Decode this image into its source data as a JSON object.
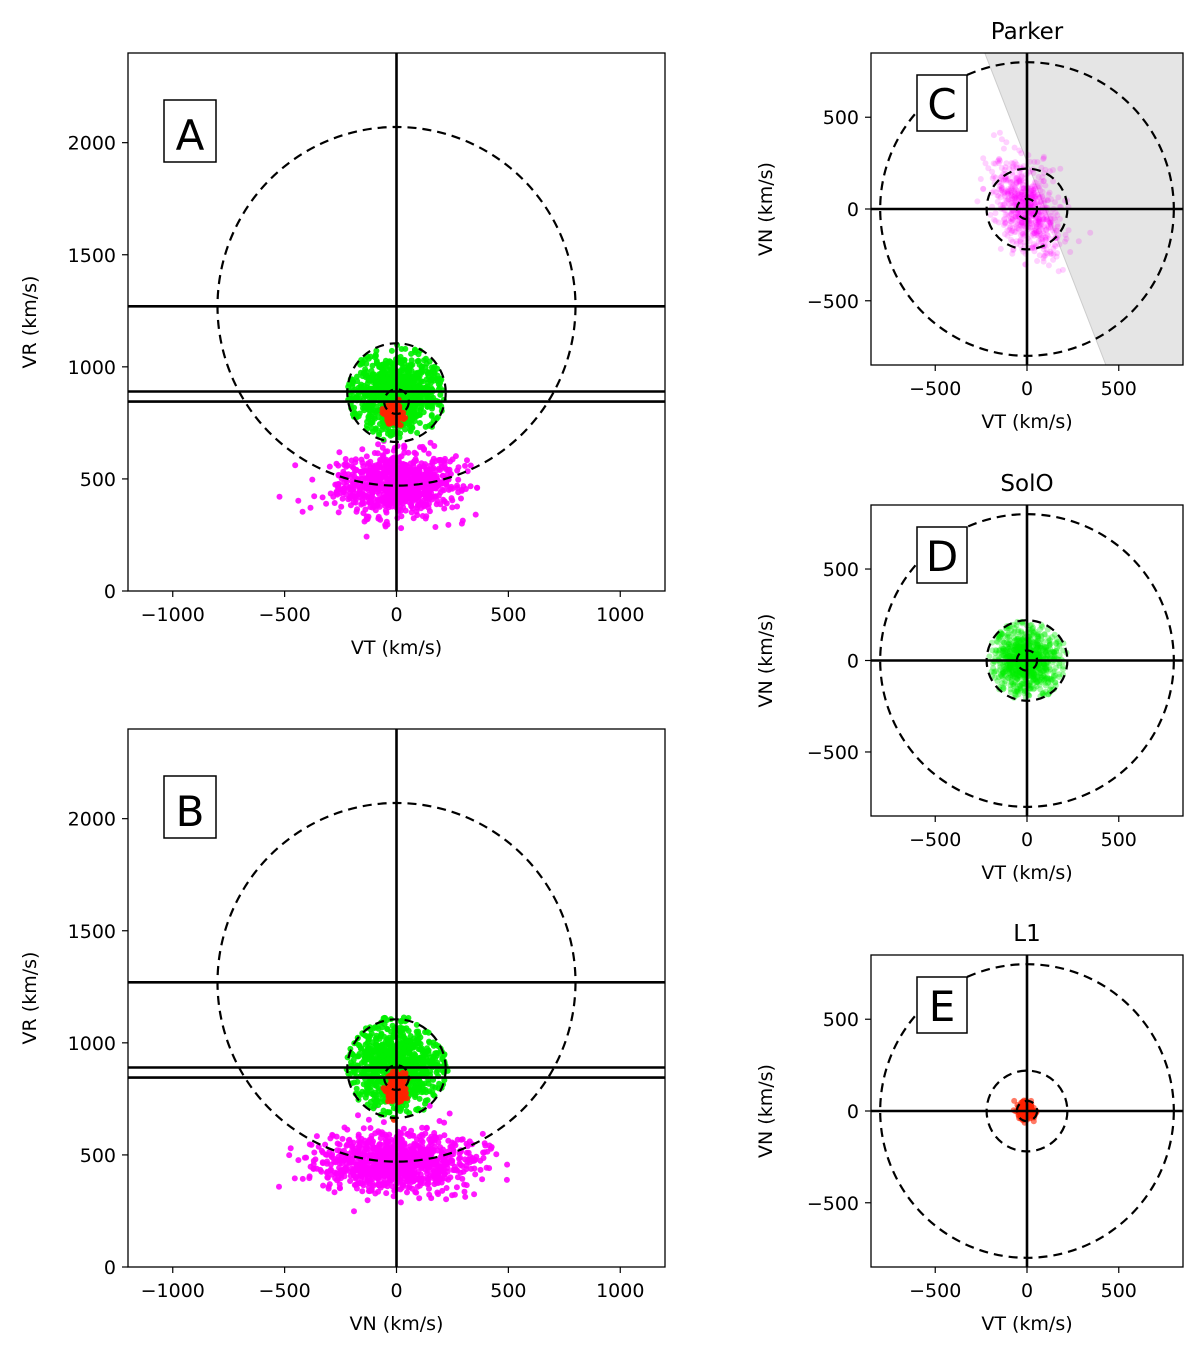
{
  "chart_data": [
    {
      "type": "scatter",
      "panel": "A",
      "title": "",
      "xlabel": "VT (km/s)",
      "ylabel": "VR (km/s)",
      "xlim": [
        -1200,
        1200
      ],
      "ylim": [
        0,
        2400
      ],
      "xticks": [
        -1000,
        -500,
        0,
        500,
        1000
      ],
      "yticks": [
        0,
        500,
        1000,
        1500,
        2000
      ],
      "hlines": [
        1270,
        890,
        845
      ],
      "vlines": [
        0
      ],
      "circles": [
        {
          "cx": 0,
          "cy": 1270,
          "r": 800
        },
        {
          "cx": 0,
          "cy": 885,
          "r": 220
        },
        {
          "cx": 0,
          "cy": 845,
          "r": 55
        }
      ],
      "series": [
        {
          "color": "#ff00ff",
          "cx": 0,
          "cy": 480,
          "sx": 130,
          "sy": 70,
          "clip_above": 680,
          "n": 900
        },
        {
          "color": "#00ee00",
          "cx": 0,
          "cy": 880,
          "sx": 95,
          "sy": 80,
          "rmax": 220,
          "n": 900
        },
        {
          "color": "#ff2200",
          "cx": -15,
          "cy": 790,
          "sx": 18,
          "sy": 25,
          "n": 160
        }
      ]
    },
    {
      "type": "scatter",
      "panel": "B",
      "title": "",
      "xlabel": "VN (km/s)",
      "ylabel": "VR (km/s)",
      "xlim": [
        -1200,
        1200
      ],
      "ylim": [
        0,
        2400
      ],
      "xticks": [
        -1000,
        -500,
        0,
        500,
        1000
      ],
      "yticks": [
        0,
        500,
        1000,
        1500,
        2000
      ],
      "hlines": [
        1270,
        890,
        845
      ],
      "vlines": [
        0
      ],
      "circles": [
        {
          "cx": 0,
          "cy": 1270,
          "r": 800
        },
        {
          "cx": 0,
          "cy": 885,
          "r": 220
        },
        {
          "cx": 0,
          "cy": 845,
          "r": 55
        }
      ],
      "series": [
        {
          "color": "#ff00ff",
          "cx": 0,
          "cy": 470,
          "sx": 170,
          "sy": 65,
          "clip_above": 760,
          "n": 1000
        },
        {
          "color": "#00ee00",
          "cx": 0,
          "cy": 890,
          "sx": 95,
          "sy": 90,
          "rmax": 230,
          "n": 900
        },
        {
          "color": "#ff2200",
          "cx": 0,
          "cy": 800,
          "sx": 20,
          "sy": 30,
          "n": 160
        }
      ]
    },
    {
      "type": "scatter",
      "panel": "C",
      "title": "Parker",
      "xlabel": "VT (km/s)",
      "ylabel": "VN (km/s)",
      "xlim": [
        -850,
        850
      ],
      "ylim": [
        -850,
        850
      ],
      "xticks": [
        -500,
        0,
        500
      ],
      "yticks": [
        -500,
        0,
        500
      ],
      "hlines": [
        0
      ],
      "vlines": [
        0
      ],
      "circles": [
        {
          "cx": 0,
          "cy": 0,
          "r": 800
        },
        {
          "cx": 0,
          "cy": 0,
          "r": 220
        },
        {
          "cx": 0,
          "cy": 0,
          "r": 55
        }
      ],
      "shaded_region": {
        "color": "#e5e5e5",
        "line": [
          [
            -230,
            850
          ],
          [
            430,
            -850
          ]
        ]
      },
      "series": [
        {
          "color": "#ff00ff",
          "cx": 0,
          "cy": 0,
          "sx": 90,
          "sy": 130,
          "rho": -0.45,
          "n": 700,
          "alpha": 0.18
        }
      ]
    },
    {
      "type": "scatter",
      "panel": "D",
      "title": "SolO",
      "xlabel": "VT (km/s)",
      "ylabel": "VN (km/s)",
      "xlim": [
        -850,
        850
      ],
      "ylim": [
        -850,
        850
      ],
      "xticks": [
        -500,
        0,
        500
      ],
      "yticks": [
        -500,
        0,
        500
      ],
      "hlines": [
        0
      ],
      "vlines": [
        0
      ],
      "circles": [
        {
          "cx": 0,
          "cy": 0,
          "r": 800
        },
        {
          "cx": 0,
          "cy": 0,
          "r": 220
        },
        {
          "cx": 0,
          "cy": 0,
          "r": 55
        }
      ],
      "series": [
        {
          "color": "#00ee00",
          "cx": 0,
          "cy": 0,
          "sx": 85,
          "sy": 85,
          "rmax": 220,
          "n": 900,
          "alpha": 0.35
        }
      ]
    },
    {
      "type": "scatter",
      "panel": "E",
      "title": "L1",
      "xlabel": "VT (km/s)",
      "ylabel": "VN (km/s)",
      "xlim": [
        -850,
        850
      ],
      "ylim": [
        -850,
        850
      ],
      "xticks": [
        -500,
        0,
        500
      ],
      "yticks": [
        -500,
        0,
        500
      ],
      "hlines": [
        0
      ],
      "vlines": [
        0
      ],
      "circles": [
        {
          "cx": 0,
          "cy": 0,
          "r": 800
        },
        {
          "cx": 0,
          "cy": 0,
          "r": 220
        },
        {
          "cx": 0,
          "cy": 0,
          "r": 55
        }
      ],
      "series": [
        {
          "color": "#ff2200",
          "cx": -10,
          "cy": 0,
          "sx": 22,
          "sy": 22,
          "n": 200,
          "alpha": 0.6
        }
      ]
    }
  ]
}
